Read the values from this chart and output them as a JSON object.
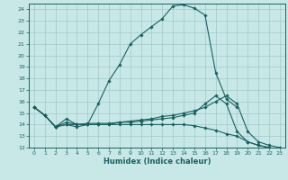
{
  "xlabel": "Humidex (Indice chaleur)",
  "bg_color": "#c8e8e8",
  "grid_color": "#a0c8c8",
  "line_color": "#1a6060",
  "xlim": [
    -0.5,
    23.5
  ],
  "ylim": [
    12,
    24.5
  ],
  "xticks": [
    0,
    1,
    2,
    3,
    4,
    5,
    6,
    7,
    8,
    9,
    10,
    11,
    12,
    13,
    14,
    15,
    16,
    17,
    18,
    19,
    20,
    21,
    22,
    23
  ],
  "yticks": [
    12,
    13,
    14,
    15,
    16,
    17,
    18,
    19,
    20,
    21,
    22,
    23,
    24
  ],
  "series": [
    {
      "x": [
        0,
        1,
        2,
        3,
        4,
        5,
        6,
        7,
        8,
        9,
        10,
        11,
        12,
        13,
        14,
        15,
        16,
        17,
        18,
        19
      ],
      "y": [
        15.5,
        14.8,
        13.8,
        14.5,
        14.0,
        14.0,
        15.8,
        17.8,
        19.2,
        21.0,
        21.8,
        22.5,
        23.2,
        24.3,
        24.4,
        24.1,
        23.5,
        18.5,
        16.2,
        15.5
      ]
    },
    {
      "x": [
        0,
        1,
        2,
        3,
        4,
        5,
        6,
        7,
        8,
        9,
        10,
        11,
        12,
        13,
        14,
        15,
        16,
        17,
        18,
        19,
        20,
        21,
        22,
        23
      ],
      "y": [
        15.5,
        14.8,
        13.8,
        14.2,
        14.0,
        14.0,
        14.0,
        14.0,
        14.2,
        14.3,
        14.4,
        14.5,
        14.7,
        14.8,
        15.0,
        15.2,
        15.5,
        16.0,
        16.5,
        15.8,
        13.4,
        12.5,
        12.2,
        12.0
      ]
    },
    {
      "x": [
        0,
        1,
        2,
        3,
        4,
        5,
        6,
        7,
        8,
        9,
        10,
        11,
        12,
        13,
        14,
        15,
        16,
        17,
        18,
        19,
        20,
        21,
        22,
        23
      ],
      "y": [
        15.5,
        14.8,
        13.8,
        14.0,
        13.8,
        14.0,
        14.0,
        14.0,
        14.0,
        14.0,
        14.0,
        14.0,
        14.0,
        14.0,
        14.0,
        13.9,
        13.7,
        13.5,
        13.2,
        13.0,
        12.5,
        12.2,
        12.0,
        11.8
      ]
    },
    {
      "x": [
        0,
        1,
        2,
        3,
        4,
        5,
        6,
        7,
        8,
        9,
        10,
        11,
        12,
        13,
        14,
        15,
        16,
        17,
        18,
        19,
        20,
        21,
        22,
        23
      ],
      "y": [
        15.5,
        14.8,
        13.8,
        14.0,
        14.0,
        14.1,
        14.1,
        14.1,
        14.2,
        14.2,
        14.3,
        14.4,
        14.5,
        14.6,
        14.8,
        15.0,
        15.8,
        16.5,
        15.8,
        13.4,
        12.5,
        12.2,
        12.0,
        11.8
      ]
    }
  ]
}
